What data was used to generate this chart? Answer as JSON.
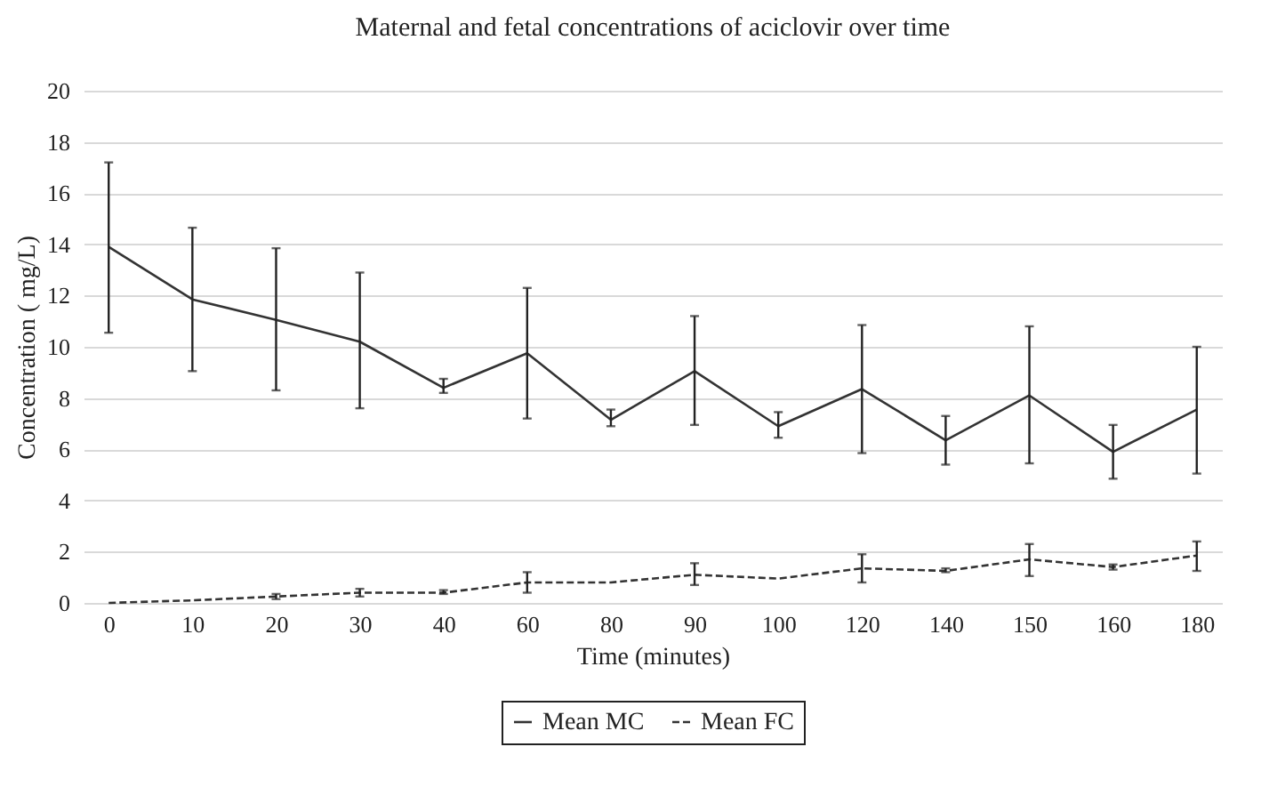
{
  "chart_data": {
    "type": "line",
    "title": "Maternal and fetal concentrations of aciclovir over time",
    "xlabel": "Time (minutes)",
    "ylabel": "Concentration ( mg/L)",
    "categories": [
      "0",
      "10",
      "20",
      "30",
      "40",
      "60",
      "80",
      "90",
      "100",
      "120",
      "140",
      "150",
      "160",
      "180"
    ],
    "series": [
      {
        "name": "Mean MC",
        "color": "#333333",
        "line_style": "solid",
        "values": [
          13.9,
          11.85,
          11.05,
          10.2,
          8.4,
          9.75,
          7.15,
          9.05,
          6.9,
          8.35,
          6.35,
          8.1,
          5.9,
          7.55
        ],
        "errors": [
          [
            10.55,
            17.2
          ],
          [
            9.05,
            14.65
          ],
          [
            8.3,
            13.85
          ],
          [
            7.6,
            12.9
          ],
          [
            8.2,
            8.75
          ],
          [
            7.2,
            12.3
          ],
          [
            6.9,
            7.55
          ],
          [
            6.95,
            11.2
          ],
          [
            6.45,
            7.45
          ],
          [
            5.85,
            10.85
          ],
          [
            5.4,
            7.3
          ],
          [
            5.45,
            10.8
          ],
          [
            4.85,
            6.95
          ],
          [
            5.05,
            10.0
          ]
        ]
      },
      {
        "name": "Mean FC",
        "color": "#333333",
        "line_style": "dashed",
        "values": [
          0,
          0.1,
          0.25,
          0.4,
          0.4,
          0.8,
          0.8,
          1.1,
          0.95,
          1.35,
          1.25,
          1.7,
          1.4,
          1.85
        ],
        "errors": [
          null,
          null,
          [
            0.15,
            0.35
          ],
          [
            0.25,
            0.55
          ],
          [
            0.35,
            0.5
          ],
          [
            0.4,
            1.2
          ],
          null,
          [
            0.7,
            1.55
          ],
          null,
          [
            0.8,
            1.9
          ],
          [
            1.2,
            1.35
          ],
          [
            1.05,
            2.3
          ],
          [
            1.3,
            1.5
          ],
          [
            1.25,
            2.4
          ]
        ]
      }
    ],
    "ylim": [
      0,
      20
    ],
    "yticks": [
      0,
      2,
      4,
      6,
      8,
      10,
      12,
      14,
      16,
      18,
      20
    ],
    "grid": "y",
    "legend": "bottom",
    "marker": "none"
  }
}
